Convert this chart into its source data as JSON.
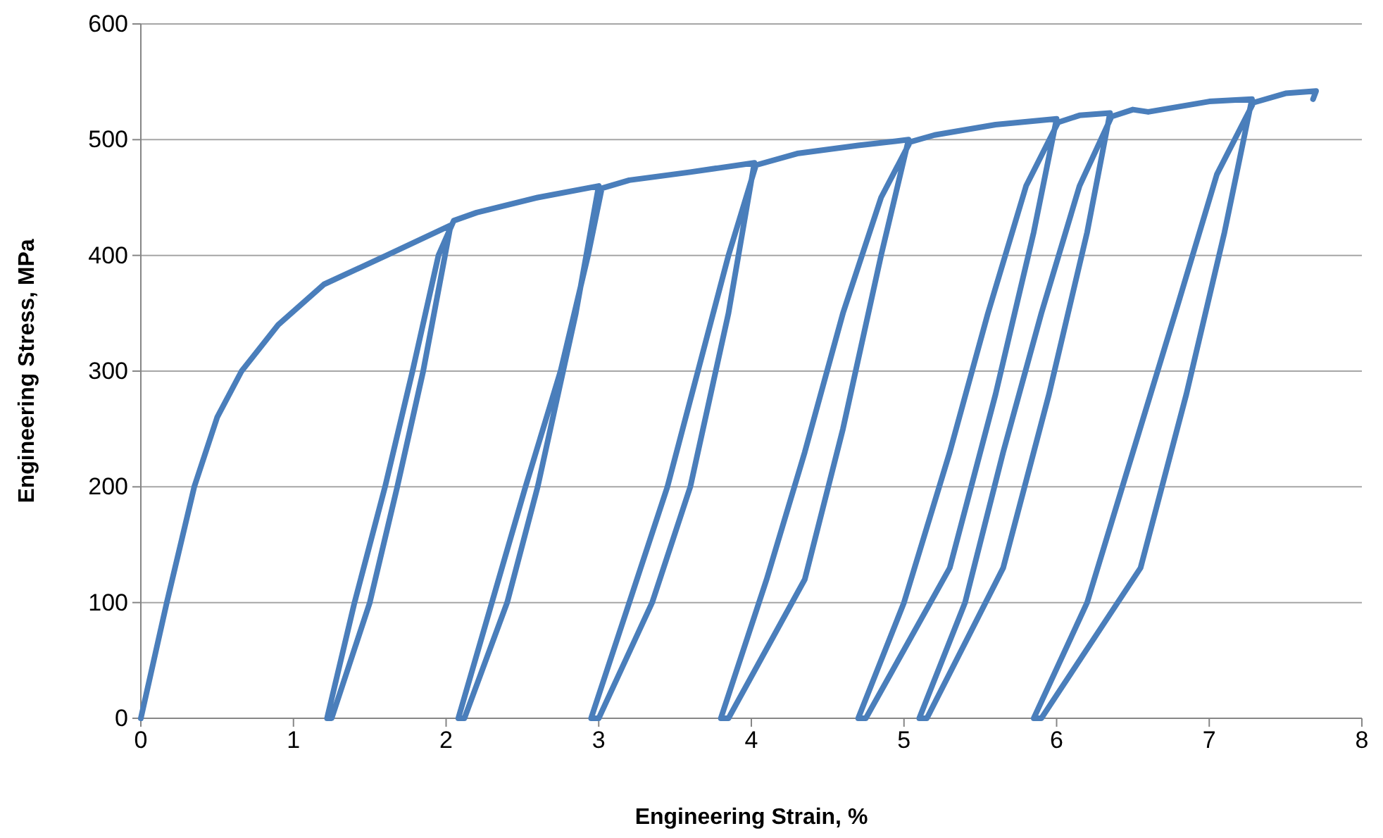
{
  "chart_data": {
    "type": "line",
    "xlabel": "Engineering Strain, %",
    "ylabel": "Engineering Stress, MPa",
    "xlim": [
      0,
      8
    ],
    "xticks": [
      0,
      1,
      2,
      3,
      4,
      5,
      6,
      7,
      8
    ],
    "ylim": [
      0,
      600
    ],
    "yticks": [
      0,
      100,
      200,
      300,
      400,
      500,
      600
    ],
    "grid": "y",
    "marker": "none",
    "line_style": "solid",
    "series": [
      {
        "color": "#4a7ebb",
        "x": [
          0,
          0.17,
          0.35,
          0.5,
          0.66,
          0.9,
          1.2,
          1.61,
          2.03,
          1.85,
          1.68,
          1.5,
          1.25,
          1.22,
          1.4,
          1.6,
          1.78,
          1.95,
          2.05,
          2.2,
          2.6,
          3.0,
          2.85,
          2.6,
          2.4,
          2.12,
          2.08,
          2.3,
          2.52,
          2.75,
          2.93,
          3.02,
          3.2,
          3.6,
          4.02,
          3.85,
          3.6,
          3.35,
          3.0,
          2.95,
          3.2,
          3.45,
          3.65,
          3.85,
          4.03,
          4.3,
          4.7,
          5.03,
          4.85,
          4.6,
          4.35,
          3.85,
          3.8,
          4.1,
          4.35,
          4.6,
          4.85,
          5.04,
          5.2,
          5.6,
          6.0,
          5.85,
          5.6,
          5.3,
          4.75,
          4.7,
          5.0,
          5.3,
          5.55,
          5.8,
          6.01,
          6.15,
          6.35,
          6.2,
          5.95,
          5.65,
          5.15,
          5.1,
          5.4,
          5.65,
          5.9,
          6.15,
          6.36,
          6.5,
          6.6,
          7.0,
          7.28,
          7.1,
          6.85,
          6.55,
          5.9,
          5.85,
          6.2,
          6.5,
          6.8,
          7.05,
          7.29,
          7.5,
          7.7,
          7.68
        ],
        "values": [
          0,
          100,
          200,
          260,
          300,
          340,
          375,
          400,
          426,
          300,
          200,
          100,
          0,
          0,
          100,
          200,
          300,
          400,
          430,
          437,
          450,
          460,
          350,
          200,
          100,
          0,
          0,
          100,
          200,
          300,
          400,
          458,
          465,
          472,
          480,
          350,
          200,
          100,
          0,
          0,
          100,
          200,
          300,
          400,
          478,
          488,
          495,
          500,
          400,
          250,
          120,
          0,
          0,
          120,
          230,
          350,
          450,
          498,
          504,
          513,
          518,
          420,
          280,
          130,
          0,
          0,
          100,
          230,
          350,
          460,
          515,
          521,
          523,
          420,
          280,
          130,
          0,
          0,
          100,
          230,
          350,
          460,
          520,
          526,
          524,
          533,
          535,
          420,
          280,
          130,
          0,
          0,
          100,
          230,
          360,
          470,
          532,
          540,
          542,
          535
        ]
      }
    ]
  }
}
